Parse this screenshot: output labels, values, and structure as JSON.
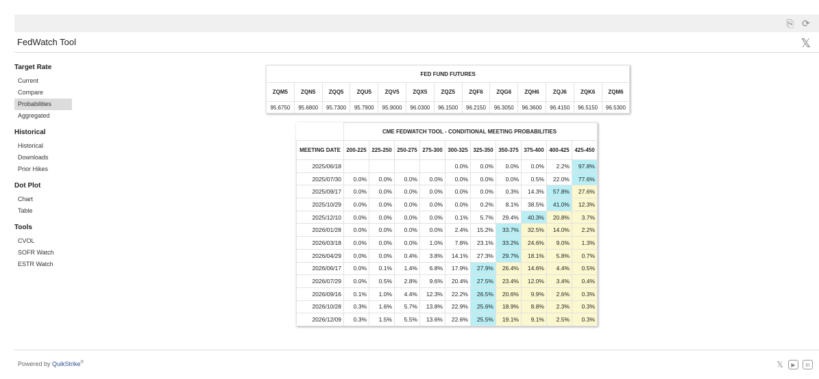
{
  "app": {
    "title": "FedWatch Tool",
    "powered_by_prefix": "Powered by ",
    "powered_by_brand": "QuikStrike",
    "powered_by_mark": "®"
  },
  "icons": {
    "pdf_icon": "⎘",
    "refresh_icon": "⟳",
    "x_icon": "𝕏",
    "youtube_icon": "▶",
    "linkedin_icon": "in"
  },
  "sidebar": {
    "sections": [
      {
        "title": "Target Rate",
        "items": [
          {
            "label": "Current",
            "active": false
          },
          {
            "label": "Compare",
            "active": false
          },
          {
            "label": "Probabilities",
            "active": true
          },
          {
            "label": "Aggregated",
            "active": false
          }
        ]
      },
      {
        "title": "Historical",
        "items": [
          {
            "label": "Historical",
            "active": false
          },
          {
            "label": "Downloads",
            "active": false
          },
          {
            "label": "Prior Hikes",
            "active": false
          }
        ]
      },
      {
        "title": "Dot Plot",
        "items": [
          {
            "label": "Chart",
            "active": false
          },
          {
            "label": "Table",
            "active": false
          }
        ]
      },
      {
        "title": "Tools",
        "items": [
          {
            "label": "CVOL",
            "active": false
          },
          {
            "label": "SOFR Watch",
            "active": false
          },
          {
            "label": "ESTR Watch",
            "active": false
          }
        ]
      }
    ]
  },
  "futures": {
    "title": "FED FUND FUTURES",
    "columns": [
      "ZQM5",
      "ZQN5",
      "ZQQ5",
      "ZQU5",
      "ZQV5",
      "ZQX5",
      "ZQZ5",
      "ZQF6",
      "ZQG6",
      "ZQH6",
      "ZQJ6",
      "ZQK6",
      "ZQM6"
    ],
    "values": [
      "95.6750",
      "95.6800",
      "95.7300",
      "95.7900",
      "95.9000",
      "96.0300",
      "96.1500",
      "96.2150",
      "96.3050",
      "96.3600",
      "96.4150",
      "96.5150",
      "96.5300"
    ]
  },
  "probabilities": {
    "title": "CME FEDWATCH TOOL - CONDITIONAL MEETING PROBABILITIES",
    "date_header": "MEETING DATE",
    "columns": [
      "200-225",
      "225-250",
      "250-275",
      "275-300",
      "300-325",
      "325-350",
      "350-375",
      "375-400",
      "400-425",
      "425-450"
    ],
    "colors": {
      "cyan": "#b9eef4",
      "yellow": "#fbf7cf"
    },
    "rows": [
      {
        "date": "2025/06/18",
        "values": [
          "",
          "",
          "",
          "",
          "0.0%",
          "0.0%",
          "0.0%",
          "0.0%",
          "2.2%",
          "97.8%"
        ],
        "hl": [
          "",
          "",
          "",
          "",
          "",
          "",
          "",
          "",
          "",
          "c"
        ]
      },
      {
        "date": "2025/07/30",
        "values": [
          "0.0%",
          "0.0%",
          "0.0%",
          "0.0%",
          "0.0%",
          "0.0%",
          "0.0%",
          "0.5%",
          "22.0%",
          "77.6%"
        ],
        "hl": [
          "",
          "",
          "",
          "",
          "",
          "",
          "",
          "",
          "",
          "c"
        ]
      },
      {
        "date": "2025/09/17",
        "values": [
          "0.0%",
          "0.0%",
          "0.0%",
          "0.0%",
          "0.0%",
          "0.0%",
          "0.3%",
          "14.3%",
          "57.8%",
          "27.6%"
        ],
        "hl": [
          "",
          "",
          "",
          "",
          "",
          "",
          "",
          "",
          "c",
          "y"
        ]
      },
      {
        "date": "2025/10/29",
        "values": [
          "0.0%",
          "0.0%",
          "0.0%",
          "0.0%",
          "0.0%",
          "0.2%",
          "8.1%",
          "38.5%",
          "41.0%",
          "12.3%"
        ],
        "hl": [
          "",
          "",
          "",
          "",
          "",
          "",
          "",
          "",
          "c",
          "y"
        ]
      },
      {
        "date": "2025/12/10",
        "values": [
          "0.0%",
          "0.0%",
          "0.0%",
          "0.0%",
          "0.1%",
          "5.7%",
          "29.4%",
          "40.3%",
          "20.8%",
          "3.7%"
        ],
        "hl": [
          "",
          "",
          "",
          "",
          "",
          "",
          "",
          "c",
          "y",
          "y"
        ]
      },
      {
        "date": "2026/01/28",
        "values": [
          "0.0%",
          "0.0%",
          "0.0%",
          "0.0%",
          "2.4%",
          "15.2%",
          "33.7%",
          "32.5%",
          "14.0%",
          "2.2%"
        ],
        "hl": [
          "",
          "",
          "",
          "",
          "",
          "",
          "c",
          "y",
          "y",
          "y"
        ]
      },
      {
        "date": "2026/03/18",
        "values": [
          "0.0%",
          "0.0%",
          "0.0%",
          "1.0%",
          "7.8%",
          "23.1%",
          "33.2%",
          "24.6%",
          "9.0%",
          "1.3%"
        ],
        "hl": [
          "",
          "",
          "",
          "",
          "",
          "",
          "c",
          "y",
          "y",
          "y"
        ]
      },
      {
        "date": "2026/04/29",
        "values": [
          "0.0%",
          "0.0%",
          "0.4%",
          "3.8%",
          "14.1%",
          "27.3%",
          "29.7%",
          "18.1%",
          "5.8%",
          "0.7%"
        ],
        "hl": [
          "",
          "",
          "",
          "",
          "",
          "",
          "c",
          "y",
          "y",
          "y"
        ]
      },
      {
        "date": "2026/06/17",
        "values": [
          "0.0%",
          "0.1%",
          "1.4%",
          "6.8%",
          "17.9%",
          "27.9%",
          "26.4%",
          "14.6%",
          "4.4%",
          "0.5%"
        ],
        "hl": [
          "",
          "",
          "",
          "",
          "",
          "c",
          "y",
          "y",
          "y",
          "y"
        ]
      },
      {
        "date": "2026/07/29",
        "values": [
          "0.0%",
          "0.5%",
          "2.8%",
          "9.6%",
          "20.4%",
          "27.5%",
          "23.4%",
          "12.0%",
          "3.4%",
          "0.4%"
        ],
        "hl": [
          "",
          "",
          "",
          "",
          "",
          "c",
          "y",
          "y",
          "y",
          "y"
        ]
      },
      {
        "date": "2026/09/16",
        "values": [
          "0.1%",
          "1.0%",
          "4.4%",
          "12.3%",
          "22.2%",
          "26.5%",
          "20.6%",
          "9.9%",
          "2.6%",
          "0.3%"
        ],
        "hl": [
          "",
          "",
          "",
          "",
          "",
          "c",
          "y",
          "y",
          "y",
          "y"
        ]
      },
      {
        "date": "2026/10/28",
        "values": [
          "0.3%",
          "1.6%",
          "5.7%",
          "13.8%",
          "22.9%",
          "25.6%",
          "18.9%",
          "8.8%",
          "2.3%",
          "0.3%"
        ],
        "hl": [
          "",
          "",
          "",
          "",
          "",
          "c",
          "y",
          "y",
          "y",
          "y"
        ]
      },
      {
        "date": "2026/12/09",
        "values": [
          "0.3%",
          "1.5%",
          "5.5%",
          "13.6%",
          "22.6%",
          "25.5%",
          "19.1%",
          "9.1%",
          "2.5%",
          "0.3%"
        ],
        "hl": [
          "",
          "",
          "",
          "",
          "",
          "c",
          "y",
          "y",
          "y",
          "y"
        ]
      }
    ]
  }
}
